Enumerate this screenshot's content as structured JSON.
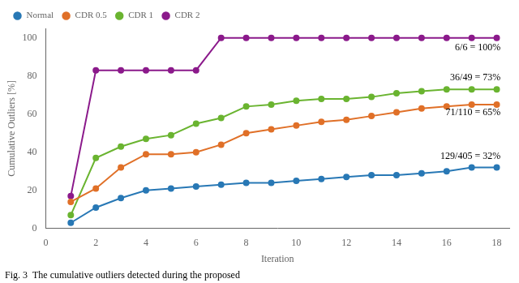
{
  "chart_data": {
    "type": "line",
    "x": [
      1,
      2,
      3,
      4,
      5,
      6,
      7,
      8,
      9,
      10,
      11,
      12,
      13,
      14,
      15,
      16,
      17,
      18
    ],
    "series": [
      {
        "name": "Normal",
        "color": "#2878b5",
        "marker": "circle",
        "values": [
          3,
          11,
          16,
          20,
          21,
          22,
          23,
          24,
          24,
          25,
          26,
          27,
          28,
          28,
          29,
          30,
          32,
          32
        ]
      },
      {
        "name": "CDR 0.5",
        "color": "#e07028",
        "marker": "circle",
        "values": [
          14,
          21,
          32,
          39,
          39,
          40,
          44,
          50,
          52,
          54,
          56,
          57,
          59,
          61,
          63,
          64,
          65,
          65
        ]
      },
      {
        "name": "CDR 1",
        "color": "#6ab430",
        "marker": "circle",
        "values": [
          7,
          37,
          43,
          47,
          49,
          55,
          58,
          64,
          65,
          67,
          68,
          68,
          69,
          71,
          72,
          73,
          73,
          73
        ]
      },
      {
        "name": "CDR 2",
        "color": "#8b1a8b",
        "marker": "circle",
        "values": [
          17,
          83,
          83,
          83,
          83,
          83,
          100,
          100,
          100,
          100,
          100,
          100,
          100,
          100,
          100,
          100,
          100,
          100
        ]
      }
    ],
    "annotations": [
      {
        "text": "6/6 = 100%",
        "x": 18.15,
        "y": 95
      },
      {
        "text": "36/49 = 73%",
        "x": 18.15,
        "y": 79
      },
      {
        "text": "71/110 = 65%",
        "x": 18.15,
        "y": 61
      },
      {
        "text": "129/405 = 32%",
        "x": 18.15,
        "y": 38
      }
    ],
    "x_label": "Iteration",
    "y_label": "Cumulative Outliers [%]",
    "caption": "Fig. 3  The cumulative outliers detected during the proposed",
    "xlim": [
      0,
      18.5
    ],
    "ylim": [
      0,
      105
    ],
    "xticks": [
      0,
      2,
      4,
      6,
      8,
      10,
      12,
      14,
      16,
      18
    ],
    "yticks": [
      0,
      20,
      40,
      60,
      80,
      100
    ],
    "grid": false,
    "legend": "upper left"
  }
}
